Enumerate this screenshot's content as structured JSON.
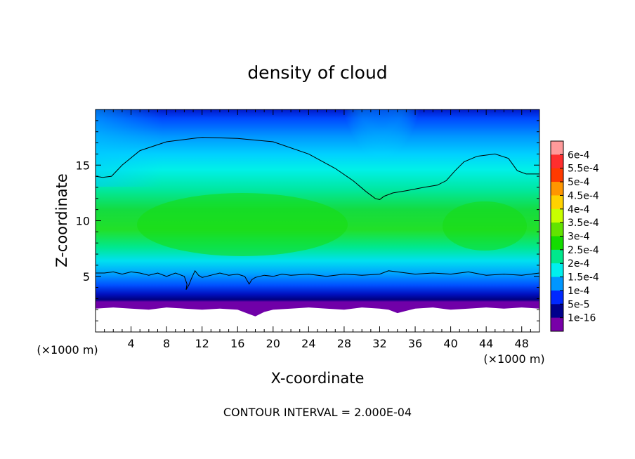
{
  "chart_data": {
    "type": "heatmap",
    "title": "density of cloud",
    "xlabel": "X-coordinate",
    "ylabel": "Z-coordinate",
    "x_unit_label": "(×1000 m)",
    "y_unit_label": "(×1000 m)",
    "xlim": [
      0,
      50
    ],
    "ylim": [
      0,
      20
    ],
    "x_ticks": [
      4,
      8,
      12,
      16,
      20,
      24,
      28,
      32,
      36,
      40,
      44,
      48
    ],
    "y_ticks": [
      5,
      10,
      15
    ],
    "footer": "CONTOUR INTERVAL = 2.000E-04",
    "colorbar": {
      "labels": [
        "6e-4",
        "5.5e-4",
        "5e-4",
        "4.5e-4",
        "4e-4",
        "3.5e-4",
        "3e-4",
        "2.5e-4",
        "2e-4",
        "1.5e-4",
        "1e-4",
        "5e-5",
        "1e-16"
      ],
      "colors": [
        "#ff9a9a",
        "#ff2e2e",
        "#ff3a00",
        "#ff9600",
        "#ffd200",
        "#c8ff00",
        "#62e400",
        "#14dc00",
        "#00e88c",
        "#00f0ee",
        "#0096ff",
        "#0028ff",
        "#00008c",
        "#7800a8"
      ]
    },
    "contour_level": 0.0002,
    "contours": [
      {
        "x": [
          0,
          0.8,
          1.8,
          3,
          5,
          8,
          12,
          16,
          20,
          24,
          27,
          29,
          30.5,
          31.5,
          32,
          32.5,
          33.5,
          35,
          37,
          38.5,
          39.5,
          40.5,
          41.5,
          43,
          45,
          46.5,
          47.5,
          48.5,
          50
        ],
        "z": [
          14.0,
          13.9,
          14.0,
          15.0,
          16.3,
          17.1,
          17.5,
          17.4,
          17.1,
          16.0,
          14.7,
          13.6,
          12.6,
          12.0,
          11.9,
          12.2,
          12.5,
          12.7,
          13.0,
          13.2,
          13.6,
          14.5,
          15.3,
          15.8,
          16.0,
          15.6,
          14.5,
          14.2,
          14.2
        ]
      },
      {
        "x": [
          0,
          1,
          2,
          3,
          4,
          5,
          6,
          7,
          8,
          9,
          10,
          10.3,
          10.2,
          10.5,
          10.8,
          11.2,
          11.6,
          12,
          13,
          14,
          15,
          16,
          16.8,
          17.3,
          17.6,
          18,
          19,
          20,
          21,
          22,
          24,
          26,
          28,
          30,
          32,
          33,
          34,
          36,
          38,
          40,
          42,
          44,
          46,
          48,
          50
        ],
        "z": [
          5.3,
          5.3,
          5.4,
          5.2,
          5.4,
          5.3,
          5.1,
          5.3,
          5.0,
          5.3,
          5.0,
          4.3,
          3.8,
          4.2,
          4.8,
          5.5,
          5.1,
          4.9,
          5.1,
          5.3,
          5.1,
          5.2,
          5.0,
          4.3,
          4.7,
          4.9,
          5.1,
          5.0,
          5.2,
          5.1,
          5.2,
          5.0,
          5.2,
          5.1,
          5.2,
          5.5,
          5.4,
          5.2,
          5.3,
          5.2,
          5.4,
          5.1,
          5.2,
          5.1,
          5.3
        ]
      }
    ],
    "cloud_base": {
      "x": [
        0,
        2,
        4,
        6,
        8,
        10,
        12,
        14,
        16,
        17,
        18,
        18.5,
        19,
        20,
        22,
        24,
        26,
        28,
        30,
        32,
        33,
        34,
        35,
        36,
        38,
        40,
        42,
        44,
        46,
        48,
        50
      ],
      "z": [
        2.1,
        2.2,
        2.1,
        2.0,
        2.2,
        2.1,
        2.0,
        2.1,
        2.0,
        1.7,
        1.4,
        1.6,
        1.8,
        2.0,
        2.1,
        2.2,
        2.1,
        2.0,
        2.2,
        2.1,
        2.0,
        1.7,
        1.9,
        2.1,
        2.2,
        2.0,
        2.1,
        2.2,
        2.1,
        2.2,
        2.1
      ]
    }
  }
}
